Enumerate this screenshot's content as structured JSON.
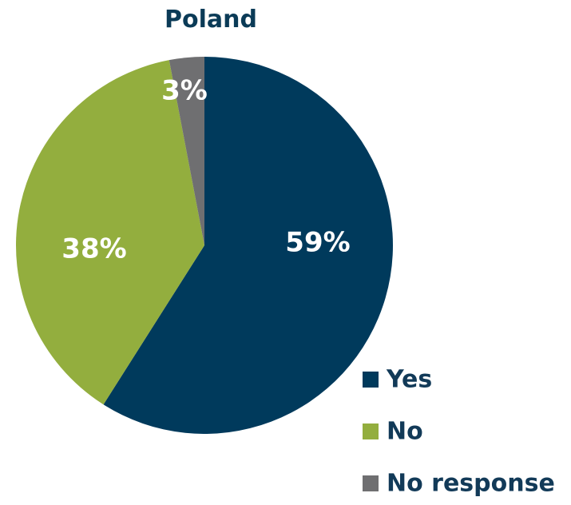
{
  "chart_data": {
    "type": "pie",
    "title": "Poland",
    "slices": [
      {
        "label": "Yes",
        "value": 59,
        "display": "59%",
        "color": "#003A5C"
      },
      {
        "label": "No",
        "value": 38,
        "display": "38%",
        "color": "#93AE3E"
      },
      {
        "label": "No response",
        "value": 3,
        "display": "3%",
        "color": "#6F6F71"
      }
    ],
    "legend": {
      "position": "bottom-right",
      "items": [
        "Yes",
        "No",
        "No response"
      ]
    }
  },
  "colors": {
    "title": "#0B3B57",
    "legend_text": "#123A58"
  }
}
